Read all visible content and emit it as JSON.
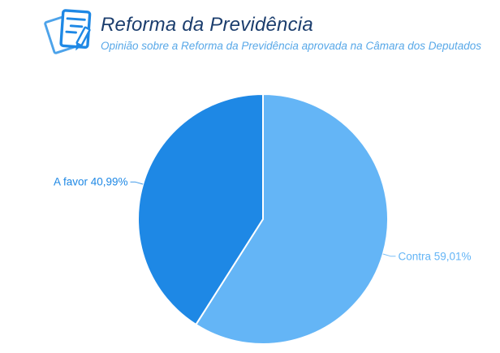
{
  "header": {
    "title": "Reforma da Previdência",
    "subtitle": "Opinião sobre a Reforma da Previdência aprovada na Câmara dos Deputados",
    "icon": "survey-papers-pencil-icon"
  },
  "colors": {
    "background": "#ffffff",
    "title_text": "#1c3e6e",
    "subtitle_text": "#58a8e8",
    "icon_primary": "#1e88e5",
    "icon_secondary": "#4da3ea"
  },
  "chart_data": {
    "type": "pie",
    "title": "Reforma da Previdência",
    "subtitle": "Opinião sobre a Reforma da Previdência aprovada na Câmara dos Deputados",
    "categories": [
      "Contra",
      "A favor"
    ],
    "values": [
      59.01,
      40.99
    ],
    "unit": "%",
    "decimal_separator": ",",
    "start_angle_deg": 0,
    "direction": "clockwise",
    "labels_position": "outside-with-connectors",
    "legend": "none",
    "slices": [
      {
        "label": "Contra",
        "value": 59.01,
        "display": "Contra 59,01%",
        "color": "#64b5f6"
      },
      {
        "label": "A favor",
        "value": 40.99,
        "display": "A favor 40,99%",
        "color": "#1e88e5"
      }
    ]
  }
}
